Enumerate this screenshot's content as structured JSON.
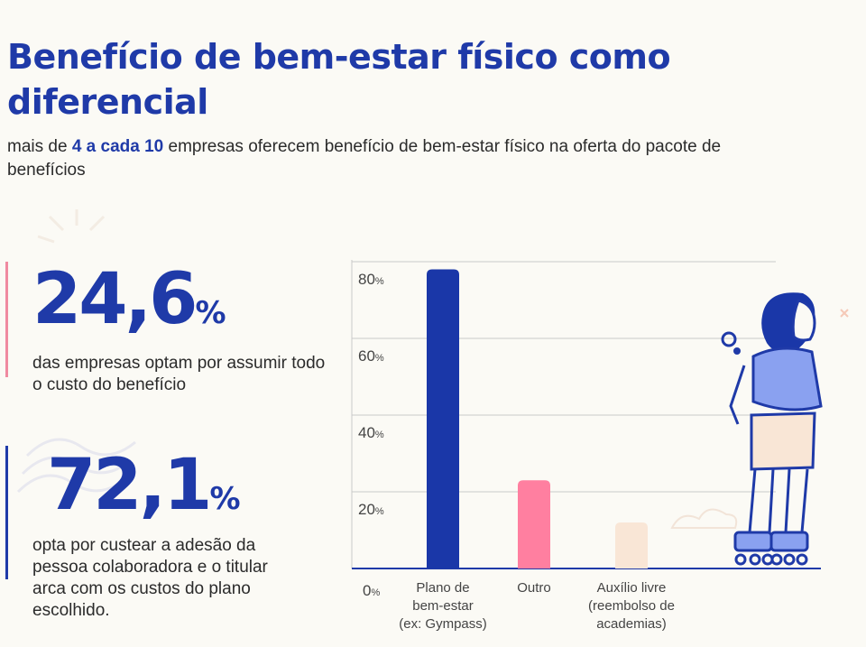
{
  "title": "Benefício de bem-estar físico como diferencial",
  "subtitle": {
    "prefix": "mais de ",
    "highlight": "4 a cada 10",
    "suffix": " empresas oferecem benefício de bem-estar físico na oferta do pacote de benefícios"
  },
  "stats": [
    {
      "value": "24,6",
      "unit": "%",
      "description": "das empresas optam por assumir todo o custo do benefício",
      "accent": "#f08aa0"
    },
    {
      "value": "72,1",
      "unit": "%",
      "description": "opta por custear a adesão da pessoa colaboradora e o titular arca com os custos do plano escolhido.",
      "accent": "#1f3aa8"
    }
  ],
  "chart_data": {
    "type": "bar",
    "categories": [
      [
        "Plano de",
        "bem-estar",
        "(ex: Gympass)"
      ],
      [
        "Outro"
      ],
      [
        "Auxílio livre",
        "(reembolso de",
        "academias)"
      ]
    ],
    "values": [
      78,
      23,
      12
    ],
    "colors": [
      "#1a37a8",
      "#ff7fa0",
      "#f9e6d6"
    ],
    "ylim": [
      0,
      80
    ],
    "yticks": [
      0,
      20,
      40,
      60,
      80
    ],
    "tick_suffix": "%",
    "grid": true
  }
}
